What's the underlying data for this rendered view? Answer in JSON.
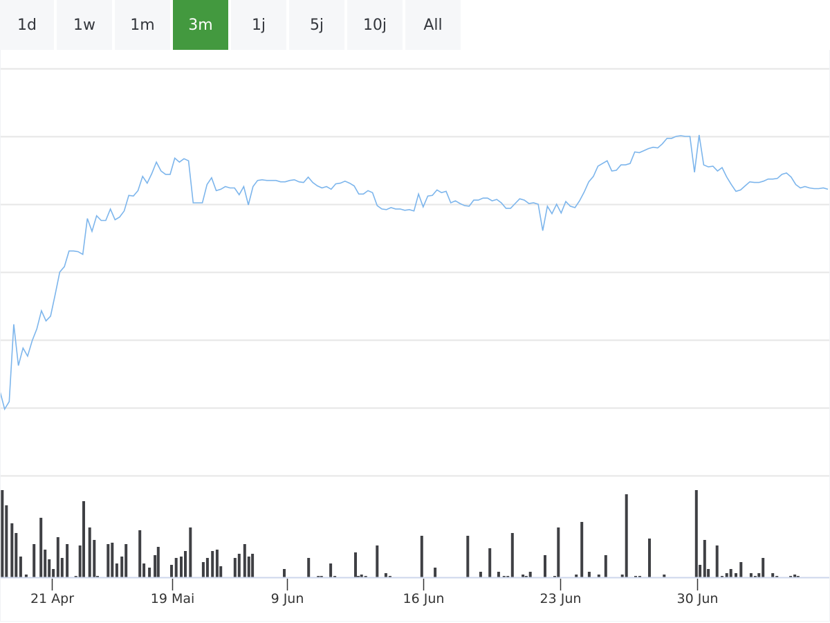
{
  "range_selector": {
    "buttons": [
      "1d",
      "1w",
      "1m",
      "3m",
      "1j",
      "5j",
      "10j",
      "All"
    ],
    "active": "3m"
  },
  "colors": {
    "price_line": "#7cb5ec",
    "volume_bar": "#3f4044",
    "active_button": "#43993f",
    "grid": "#e6e6e6",
    "axis": "#ccd6eb"
  },
  "chart_data": {
    "type": "line",
    "title": "",
    "xlabel": "",
    "ylabel": "",
    "x_range": [
      0,
      180
    ],
    "ylim": [
      0,
      60
    ],
    "grid": true,
    "x_ticks": [
      {
        "t": 11.3,
        "label": "21 Apr"
      },
      {
        "t": 37.4,
        "label": "19 Mai"
      },
      {
        "t": 62.4,
        "label": "9 Jun"
      },
      {
        "t": 92.0,
        "label": "16 Jun"
      },
      {
        "t": 121.8,
        "label": "23 Jun"
      },
      {
        "t": 151.6,
        "label": "30 Jun"
      }
    ],
    "series": [
      {
        "name": "price",
        "type": "line",
        "values": [
          12.4,
          9.8,
          10.9,
          22.3,
          16.2,
          18.8,
          17.6,
          19.9,
          21.6,
          24.3,
          22.8,
          23.5,
          26.7,
          30.0,
          30.8,
          33.1,
          33.1,
          33.0,
          32.6,
          37.9,
          36.0,
          38.3,
          37.6,
          37.6,
          39.3,
          37.7,
          38.1,
          39.0,
          41.3,
          41.2,
          42.0,
          44.1,
          43.1,
          44.5,
          46.2,
          44.9,
          44.4,
          44.4,
          46.8,
          46.2,
          46.7,
          46.4,
          40.2,
          40.2,
          40.2,
          42.9,
          43.9,
          42.0,
          42.2,
          42.6,
          42.4,
          42.4,
          41.4,
          42.6,
          39.9,
          42.6,
          43.5,
          43.6,
          43.5,
          43.5,
          43.5,
          43.3,
          43.3,
          43.5,
          43.6,
          43.3,
          43.2,
          44.0,
          43.2,
          42.7,
          42.4,
          42.6,
          42.2,
          43.0,
          43.1,
          43.4,
          43.1,
          42.7,
          41.5,
          41.5,
          42.0,
          41.7,
          39.8,
          39.3,
          39.2,
          39.5,
          39.3,
          39.3,
          39.1,
          39.2,
          39.0,
          41.5,
          39.6,
          41.2,
          41.3,
          42.1,
          41.7,
          41.9,
          40.2,
          40.5,
          40.1,
          39.8,
          39.7,
          40.6,
          40.6,
          40.9,
          40.9,
          40.5,
          40.7,
          40.2,
          39.4,
          39.4,
          40.1,
          40.8,
          40.6,
          40.1,
          40.2,
          40.0,
          36.1,
          39.7,
          38.6,
          40.0,
          38.7,
          40.4,
          39.7,
          39.5,
          40.5,
          41.8,
          43.3,
          44.1,
          45.6,
          46.0,
          46.4,
          44.9,
          45.0,
          45.8,
          45.8,
          46.0,
          47.7,
          47.6,
          47.9,
          48.2,
          48.4,
          48.3,
          48.9,
          49.7,
          49.7,
          50.0,
          50.1,
          50.0,
          50.0,
          44.7,
          50.2,
          45.8,
          45.5,
          45.6,
          44.9,
          45.4,
          44.0,
          42.9,
          41.9,
          42.1,
          42.7,
          43.3,
          43.2,
          43.2,
          43.4,
          43.7,
          43.7,
          43.8,
          44.4,
          44.6,
          44.0,
          42.9,
          42.4,
          42.6,
          42.4,
          42.3,
          42.3,
          42.4,
          42.2
        ]
      },
      {
        "name": "volume",
        "type": "bar",
        "ylim": [
          0,
          130
        ],
        "points": [
          [
            0.5,
            126
          ],
          [
            1.4,
            104
          ],
          [
            2.6,
            78
          ],
          [
            3.5,
            64
          ],
          [
            4.5,
            30
          ],
          [
            5.7,
            4
          ],
          [
            7.4,
            48
          ],
          [
            8.9,
            86
          ],
          [
            9.8,
            40
          ],
          [
            10.7,
            26
          ],
          [
            11.6,
            12
          ],
          [
            12.6,
            58
          ],
          [
            13.5,
            28
          ],
          [
            14.6,
            48
          ],
          [
            16.5,
            2
          ],
          [
            17.4,
            46
          ],
          [
            18.2,
            110
          ],
          [
            19.5,
            72
          ],
          [
            20.5,
            54
          ],
          [
            21.2,
            2
          ],
          [
            23.5,
            48
          ],
          [
            24.4,
            50
          ],
          [
            25.4,
            20
          ],
          [
            26.5,
            30
          ],
          [
            27.4,
            48
          ],
          [
            30.4,
            68
          ],
          [
            31.3,
            20
          ],
          [
            32.5,
            14
          ],
          [
            33.7,
            32
          ],
          [
            34.4,
            44
          ],
          [
            37.3,
            18
          ],
          [
            38.3,
            28
          ],
          [
            39.4,
            30
          ],
          [
            40.3,
            38
          ],
          [
            41.4,
            72
          ],
          [
            44.2,
            22
          ],
          [
            45.1,
            28
          ],
          [
            46.2,
            38
          ],
          [
            47.2,
            40
          ],
          [
            48.0,
            16
          ],
          [
            51.1,
            28
          ],
          [
            52.0,
            34
          ],
          [
            53.2,
            48
          ],
          [
            54.1,
            30
          ],
          [
            54.9,
            34
          ],
          [
            61.8,
            12
          ],
          [
            67.1,
            28
          ],
          [
            69.2,
            2
          ],
          [
            69.9,
            2
          ],
          [
            71.9,
            20
          ],
          [
            72.8,
            2
          ],
          [
            77.3,
            36
          ],
          [
            77.9,
            2
          ],
          [
            78.6,
            4
          ],
          [
            79.5,
            2
          ],
          [
            82.0,
            46
          ],
          [
            83.9,
            6
          ],
          [
            84.8,
            2
          ],
          [
            91.7,
            60
          ],
          [
            94.6,
            14
          ],
          [
            101.7,
            60
          ],
          [
            104.5,
            8
          ],
          [
            106.5,
            42
          ],
          [
            108.4,
            8
          ],
          [
            109.6,
            2
          ],
          [
            110.4,
            2
          ],
          [
            111.4,
            64
          ],
          [
            113.7,
            4
          ],
          [
            114.4,
            2
          ],
          [
            115.3,
            8
          ],
          [
            118.5,
            32
          ],
          [
            120.6,
            2
          ],
          [
            121.4,
            72
          ],
          [
            125.3,
            4
          ],
          [
            126.5,
            80
          ],
          [
            128.1,
            8
          ],
          [
            130.2,
            4
          ],
          [
            131.7,
            32
          ],
          [
            135.3,
            4
          ],
          [
            136.2,
            120
          ],
          [
            138.2,
            2
          ],
          [
            139.1,
            2
          ],
          [
            141.2,
            56
          ],
          [
            144.4,
            4
          ],
          [
            151.4,
            126
          ],
          [
            152.2,
            18
          ],
          [
            153.2,
            54
          ],
          [
            154.0,
            12
          ],
          [
            155.9,
            46
          ],
          [
            157.0,
            2
          ],
          [
            158.0,
            6
          ],
          [
            158.9,
            12
          ],
          [
            160.0,
            6
          ],
          [
            161.1,
            22
          ],
          [
            163.3,
            6
          ],
          [
            164.2,
            2
          ],
          [
            165.0,
            6
          ],
          [
            165.9,
            28
          ],
          [
            168.0,
            6
          ],
          [
            168.9,
            2
          ],
          [
            171.9,
            2
          ],
          [
            172.8,
            4
          ],
          [
            173.5,
            2
          ]
        ]
      }
    ]
  }
}
